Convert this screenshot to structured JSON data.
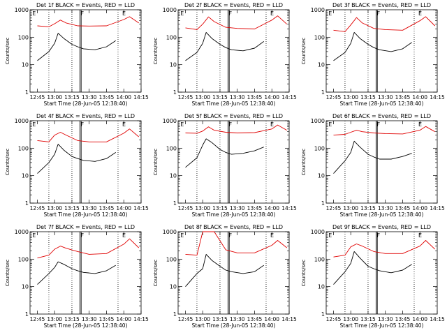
{
  "figure": {
    "ylabel": "Counts/sec",
    "xlabel": "Start Time (28-Jun-05 12:38:40)"
  },
  "chart_data": [
    {
      "type": "line",
      "title": "Det 1f BLACK = Events, RED = LLD",
      "xlabel": "Start Time (28-Jun-05 12:38:40)",
      "ylabel": "Counts/sec",
      "yscale": "log",
      "ylim": [
        1,
        1000
      ],
      "xlim": [
        "12:38:40",
        "14:15"
      ],
      "x_ticks": [
        "12:45",
        "13:00",
        "13:15",
        "13:30",
        "13:45",
        "14:00",
        "14:15"
      ],
      "y_ticks": [
        "1",
        "10",
        "100",
        "1000"
      ],
      "markers": [
        "E",
        "F",
        "E"
      ],
      "series": [
        {
          "color": "#e00000",
          "x": [
            "12:45",
            "12:55",
            "13:00",
            "13:05",
            "13:10",
            "13:20",
            "13:30",
            "13:45",
            "14:00",
            "14:05",
            "14:13"
          ],
          "values": [
            260,
            240,
            310,
            420,
            330,
            260,
            255,
            260,
            440,
            560,
            330
          ]
        },
        {
          "color": "#000000",
          "x": [
            "12:45",
            "12:55",
            "13:00",
            "13:03",
            "13:08",
            "13:15",
            "13:20",
            "13:25",
            "13:35",
            "13:45",
            "13:53"
          ],
          "values": [
            14,
            30,
            60,
            140,
            90,
            55,
            45,
            38,
            35,
            45,
            75
          ]
        }
      ]
    },
    {
      "type": "line",
      "title": "Det 2f BLACK = Events, RED = LLD",
      "xlabel": "Start Time (28-Jun-05 12:38:40)",
      "ylabel": "Counts/sec",
      "yscale": "log",
      "ylim": [
        1,
        1000
      ],
      "xlim": [
        "12:38:40",
        "14:15"
      ],
      "x_ticks": [
        "12:45",
        "13:00",
        "13:15",
        "13:30",
        "13:45",
        "14:00",
        "14:15"
      ],
      "y_ticks": [
        "1",
        "10",
        "100",
        "1000"
      ],
      "markers": [
        "E",
        "F",
        "E"
      ],
      "series": [
        {
          "color": "#e00000",
          "x": [
            "12:45",
            "12:55",
            "13:00",
            "13:05",
            "13:10",
            "13:20",
            "13:30",
            "13:45",
            "14:00",
            "14:05",
            "14:13"
          ],
          "values": [
            220,
            190,
            300,
            550,
            370,
            230,
            210,
            200,
            420,
            600,
            300
          ]
        },
        {
          "color": "#000000",
          "x": [
            "12:45",
            "12:55",
            "13:00",
            "13:03",
            "13:08",
            "13:15",
            "13:20",
            "13:25",
            "13:35",
            "13:45",
            "13:53"
          ],
          "values": [
            14,
            28,
            60,
            150,
            90,
            55,
            42,
            35,
            32,
            40,
            70
          ]
        }
      ]
    },
    {
      "type": "line",
      "title": "Det 3f BLACK = Events, RED = LLD",
      "xlabel": "Start Time (28-Jun-05 12:38:40)",
      "ylabel": "Counts/sec",
      "yscale": "log",
      "ylim": [
        1,
        1000
      ],
      "xlim": [
        "12:38:40",
        "14:15"
      ],
      "x_ticks": [
        "12:45",
        "13:00",
        "13:15",
        "13:30",
        "13:45",
        "14:00",
        "14:15"
      ],
      "y_ticks": [
        "1",
        "10",
        "100",
        "1000"
      ],
      "markers": [
        "E",
        "F",
        "E"
      ],
      "series": [
        {
          "color": "#e00000",
          "x": [
            "12:45",
            "12:55",
            "13:00",
            "13:05",
            "13:10",
            "13:20",
            "13:30",
            "13:45",
            "14:00",
            "14:05",
            "14:13"
          ],
          "values": [
            180,
            160,
            280,
            520,
            330,
            210,
            190,
            180,
            400,
            560,
            260
          ]
        },
        {
          "color": "#000000",
          "x": [
            "12:45",
            "12:55",
            "13:00",
            "13:03",
            "13:08",
            "13:15",
            "13:20",
            "13:25",
            "13:35",
            "13:45",
            "13:53"
          ],
          "values": [
            14,
            28,
            60,
            150,
            90,
            55,
            42,
            35,
            30,
            38,
            65
          ]
        }
      ]
    },
    {
      "type": "line",
      "title": "Det 4f BLACK = Events, RED = LLD",
      "xlabel": "Start Time (28-Jun-05 12:38:40)",
      "ylabel": "Counts/sec",
      "yscale": "log",
      "ylim": [
        1,
        1000
      ],
      "xlim": [
        "12:38:40",
        "14:15"
      ],
      "x_ticks": [
        "12:45",
        "13:00",
        "13:15",
        "13:30",
        "13:45",
        "14:00",
        "14:15"
      ],
      "y_ticks": [
        "1",
        "10",
        "100",
        "1000"
      ],
      "markers": [
        "E",
        "F",
        "E"
      ],
      "series": [
        {
          "color": "#e00000",
          "x": [
            "12:45",
            "12:55",
            "13:00",
            "13:05",
            "13:10",
            "13:20",
            "13:30",
            "13:45",
            "14:00",
            "14:05",
            "14:13"
          ],
          "values": [
            190,
            170,
            300,
            380,
            300,
            190,
            170,
            170,
            350,
            500,
            260
          ]
        },
        {
          "color": "#000000",
          "x": [
            "12:45",
            "12:55",
            "13:00",
            "13:03",
            "13:08",
            "13:15",
            "13:20",
            "13:25",
            "13:35",
            "13:45",
            "13:53"
          ],
          "values": [
            12,
            30,
            60,
            140,
            85,
            50,
            42,
            36,
            33,
            42,
            70
          ]
        }
      ]
    },
    {
      "type": "line",
      "title": "Det 5f BLACK = Events, RED = LLD",
      "xlabel": "Start Time (28-Jun-05 12:38:40)",
      "ylabel": "Counts/sec",
      "yscale": "log",
      "ylim": [
        1,
        1000
      ],
      "xlim": [
        "12:38:40",
        "14:15"
      ],
      "x_ticks": [
        "12:45",
        "13:00",
        "13:15",
        "13:30",
        "13:45",
        "14:00",
        "14:15"
      ],
      "y_ticks": [
        "1",
        "10",
        "100",
        "1000"
      ],
      "markers": [
        "E",
        "F",
        "E"
      ],
      "series": [
        {
          "color": "#e00000",
          "x": [
            "12:45",
            "12:55",
            "13:00",
            "13:05",
            "13:10",
            "13:20",
            "13:30",
            "13:45",
            "14:00",
            "14:05",
            "14:13"
          ],
          "values": [
            360,
            350,
            420,
            600,
            450,
            380,
            360,
            370,
            500,
            700,
            450
          ]
        },
        {
          "color": "#000000",
          "x": [
            "12:45",
            "12:55",
            "13:00",
            "13:03",
            "13:08",
            "13:15",
            "13:20",
            "13:25",
            "13:35",
            "13:45",
            "13:53"
          ],
          "values": [
            20,
            45,
            130,
            220,
            160,
            90,
            70,
            60,
            65,
            80,
            110
          ]
        }
      ]
    },
    {
      "type": "line",
      "title": "Det 6f BLACK = Events, RED = LLD",
      "xlabel": "Start Time (28-Jun-05 12:38:40)",
      "ylabel": "Counts/sec",
      "yscale": "log",
      "ylim": [
        1,
        1000
      ],
      "xlim": [
        "12:38:40",
        "14:15"
      ],
      "x_ticks": [
        "12:45",
        "13:00",
        "13:15",
        "13:30",
        "13:45",
        "14:00",
        "14:15"
      ],
      "y_ticks": [
        "1",
        "10",
        "100",
        "1000"
      ],
      "markers": [
        "E",
        "F",
        "E"
      ],
      "series": [
        {
          "color": "#e00000",
          "x": [
            "12:45",
            "12:55",
            "13:00",
            "13:05",
            "13:10",
            "13:20",
            "13:30",
            "13:45",
            "14:00",
            "14:05",
            "14:13"
          ],
          "values": [
            300,
            320,
            380,
            450,
            400,
            360,
            340,
            330,
            450,
            620,
            400
          ]
        },
        {
          "color": "#000000",
          "x": [
            "12:45",
            "12:55",
            "13:00",
            "13:03",
            "13:08",
            "13:15",
            "13:20",
            "13:25",
            "13:35",
            "13:45",
            "13:53"
          ],
          "values": [
            12,
            35,
            70,
            180,
            110,
            60,
            48,
            40,
            40,
            50,
            65
          ]
        }
      ]
    },
    {
      "type": "line",
      "title": "Det 7f BLACK = Events, RED = LLD",
      "xlabel": "Start Time (28-Jun-05 12:38:40)",
      "ylabel": "Counts/sec",
      "yscale": "log",
      "ylim": [
        1,
        1000
      ],
      "xlim": [
        "12:38:40",
        "14:15"
      ],
      "x_ticks": [
        "12:45",
        "13:00",
        "13:15",
        "13:30",
        "13:45",
        "14:00",
        "14:15"
      ],
      "y_ticks": [
        "1",
        "10",
        "100",
        "1000"
      ],
      "markers": [
        "E",
        "F",
        "E"
      ],
      "series": [
        {
          "color": "#e00000",
          "x": [
            "12:45",
            "12:55",
            "13:00",
            "13:05",
            "13:10",
            "13:20",
            "13:30",
            "13:45",
            "14:00",
            "14:05",
            "14:13"
          ],
          "values": [
            110,
            140,
            230,
            300,
            250,
            190,
            150,
            160,
            350,
            550,
            260
          ]
        },
        {
          "color": "#000000",
          "x": [
            "12:45",
            "12:55",
            "13:00",
            "13:03",
            "13:08",
            "13:15",
            "13:20",
            "13:25",
            "13:35",
            "13:45",
            "13:53"
          ],
          "values": [
            12,
            30,
            50,
            80,
            65,
            45,
            38,
            33,
            30,
            38,
            60
          ]
        }
      ]
    },
    {
      "type": "line",
      "title": "Det 8f BLACK = Events, RED = LLD",
      "xlabel": "Start Time (28-Jun-05 12:38:40)",
      "ylabel": "Counts/sec",
      "yscale": "log",
      "ylim": [
        1,
        1000
      ],
      "xlim": [
        "12:38:40",
        "14:15"
      ],
      "x_ticks": [
        "12:45",
        "13:00",
        "13:15",
        "13:30",
        "13:45",
        "14:00",
        "14:15"
      ],
      "y_ticks": [
        "1",
        "10",
        "100",
        "1000"
      ],
      "markers": [
        "E",
        "F",
        "E"
      ],
      "series": [
        {
          "color": "#e00000",
          "x": [
            "12:45",
            "12:55",
            "13:00",
            "13:05",
            "13:10",
            "13:20",
            "13:30",
            "13:45",
            "14:00",
            "14:05",
            "14:13"
          ],
          "values": [
            150,
            140,
            1000,
            1000,
            1000,
            220,
            170,
            170,
            320,
            480,
            260
          ]
        },
        {
          "color": "#000000",
          "x": [
            "12:45",
            "12:55",
            "13:00",
            "13:03",
            "13:08",
            "13:15",
            "13:20",
            "13:25",
            "13:35",
            "13:45",
            "13:53"
          ],
          "values": [
            10,
            30,
            45,
            150,
            90,
            55,
            40,
            35,
            30,
            35,
            60
          ]
        }
      ]
    },
    {
      "type": "line",
      "title": "Det 9f BLACK = Events, RED = LLD",
      "xlabel": "Start Time (28-Jun-05 12:38:40)",
      "ylabel": "Counts/sec",
      "yscale": "log",
      "ylim": [
        1,
        1000
      ],
      "xlim": [
        "12:38:40",
        "14:15"
      ],
      "x_ticks": [
        "12:45",
        "13:00",
        "13:15",
        "13:30",
        "13:45",
        "14:00",
        "14:15"
      ],
      "y_ticks": [
        "1",
        "10",
        "100",
        "1000"
      ],
      "markers": [
        "E",
        "F",
        "E"
      ],
      "series": [
        {
          "color": "#e00000",
          "x": [
            "12:45",
            "12:55",
            "13:00",
            "13:05",
            "13:10",
            "13:20",
            "13:30",
            "13:45",
            "14:00",
            "14:05",
            "14:13"
          ],
          "values": [
            120,
            140,
            280,
            360,
            300,
            190,
            160,
            160,
            300,
            480,
            230
          ]
        },
        {
          "color": "#000000",
          "x": [
            "12:45",
            "12:55",
            "13:00",
            "13:03",
            "13:08",
            "13:15",
            "13:20",
            "13:25",
            "13:35",
            "13:45",
            "13:53"
          ],
          "values": [
            12,
            35,
            70,
            190,
            110,
            55,
            45,
            38,
            32,
            40,
            65
          ]
        }
      ]
    }
  ]
}
